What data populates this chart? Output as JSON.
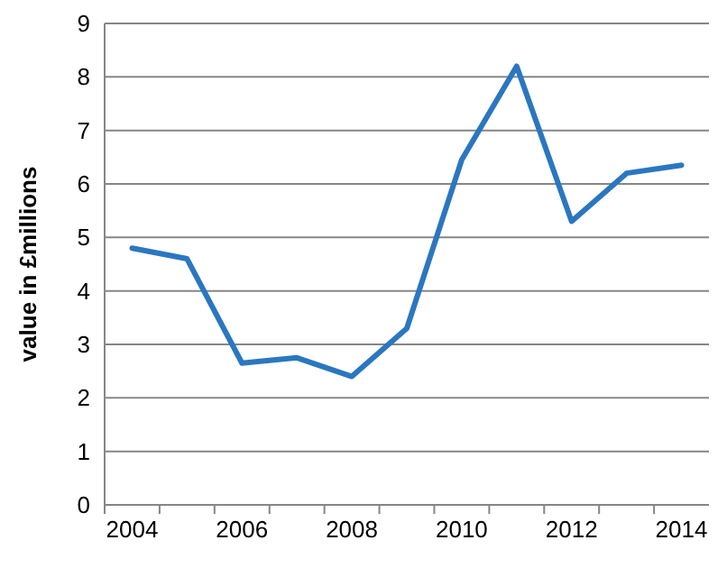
{
  "chart_data": {
    "type": "line",
    "ylabel": "value in £millions",
    "categories": [
      "2004",
      null,
      "2006",
      null,
      "2008",
      null,
      "2010",
      null,
      "2012",
      null,
      "2014"
    ],
    "series": [
      {
        "color": "#2a77c0",
        "values": [
          4.8,
          4.6,
          2.65,
          2.75,
          2.4,
          3.3,
          6.45,
          8.2,
          5.3,
          6.2,
          6.35
        ]
      }
    ],
    "ylim": [
      0,
      9
    ],
    "yticks": [
      0,
      1,
      2,
      3,
      4,
      5,
      6,
      7,
      8,
      9
    ],
    "grid": "y",
    "marker": "none",
    "line_style": "solid"
  }
}
